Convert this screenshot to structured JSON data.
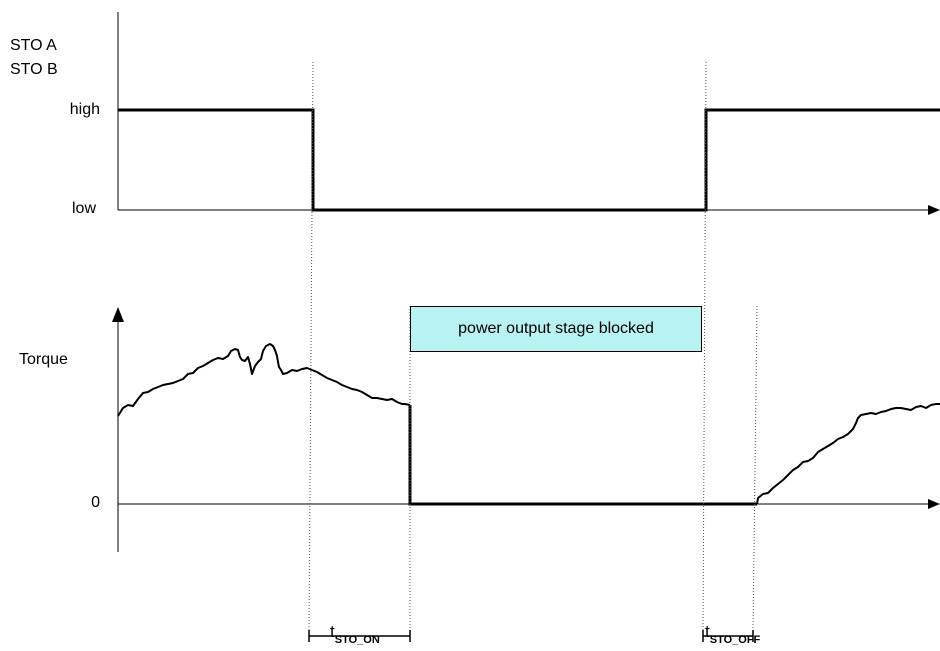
{
  "signal_labels": {
    "line1": "STO A",
    "line2": "STO B",
    "high": "high",
    "low": "low"
  },
  "torque_labels": {
    "axis": "Torque",
    "zero": "0"
  },
  "blocked_box": {
    "text": "power output stage blocked",
    "color": "#b8f2f2"
  },
  "timings": {
    "on": {
      "base": "t",
      "sub": "STO_ON"
    },
    "off": {
      "base": "t",
      "sub": "STO_OFF"
    }
  }
}
